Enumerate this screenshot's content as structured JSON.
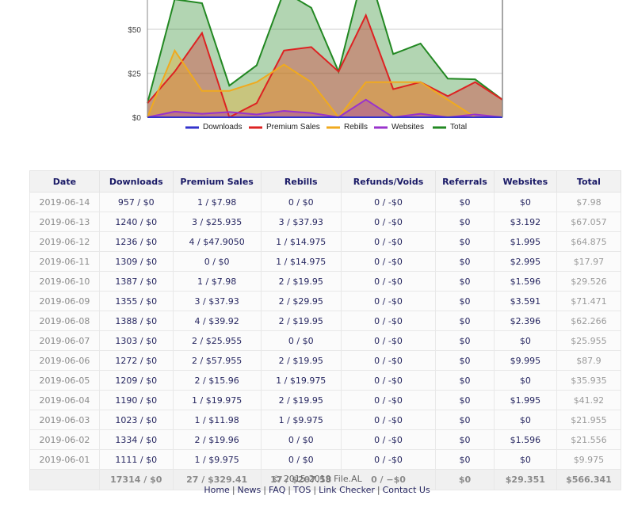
{
  "chart_data": {
    "type": "area",
    "title": "",
    "xlabel": "",
    "ylabel": "",
    "x": [
      "2019-06-14",
      "2019-06-13",
      "2019-06-12",
      "2019-06-11",
      "2019-06-10",
      "2019-06-09",
      "2019-06-08",
      "2019-06-07",
      "2019-06-06",
      "2019-06-05",
      "2019-06-04",
      "2019-06-03",
      "2019-06-02",
      "2019-06-01"
    ],
    "yticks": [
      0,
      25,
      50
    ],
    "ytick_labels": [
      "$0",
      "$25",
      "$50"
    ],
    "ylim": [
      0,
      75
    ],
    "grid": true,
    "legend_position": "bottom",
    "series": [
      {
        "name": "Downloads",
        "color": "#3333cc",
        "values": [
          0,
          0,
          0,
          0,
          0,
          0,
          0,
          0,
          0,
          0,
          0,
          0,
          0,
          0
        ]
      },
      {
        "name": "Premium Sales",
        "color": "#dd2222",
        "values": [
          7.98,
          25.935,
          47.905,
          0,
          7.98,
          37.93,
          39.92,
          25.955,
          57.955,
          15.96,
          19.975,
          11.98,
          19.96,
          9.975
        ]
      },
      {
        "name": "Rebills",
        "color": "#f0aa1e",
        "values": [
          0,
          37.93,
          14.975,
          14.975,
          19.95,
          29.95,
          19.95,
          0,
          19.95,
          19.975,
          19.95,
          9.975,
          0,
          0
        ]
      },
      {
        "name": "Websites",
        "color": "#9933cc",
        "values": [
          0,
          3.192,
          1.995,
          2.995,
          1.596,
          3.591,
          2.396,
          0,
          9.995,
          0,
          1.995,
          0,
          1.596,
          0
        ]
      },
      {
        "name": "Total",
        "color": "#228822",
        "values": [
          7.98,
          67.057,
          64.875,
          17.97,
          29.526,
          71.471,
          62.266,
          25.955,
          87.9,
          35.935,
          41.92,
          21.955,
          21.556,
          9.975
        ]
      }
    ]
  },
  "table": {
    "headers": [
      "Date",
      "Downloads",
      "Premium Sales",
      "Rebills",
      "Refunds/Voids",
      "Referrals",
      "Websites",
      "Total"
    ],
    "rows": [
      [
        "2019-06-14",
        "957 / $0",
        "1 / $7.98",
        "0 / $0",
        "0 / -$0",
        "$0",
        "$0",
        "$7.98"
      ],
      [
        "2019-06-13",
        "1240 / $0",
        "3 / $25.935",
        "3 / $37.93",
        "0 / -$0",
        "$0",
        "$3.192",
        "$67.057"
      ],
      [
        "2019-06-12",
        "1236 / $0",
        "4 / $47.9050",
        "1 / $14.975",
        "0 / -$0",
        "$0",
        "$1.995",
        "$64.875"
      ],
      [
        "2019-06-11",
        "1309 / $0",
        "0 / $0",
        "1 / $14.975",
        "0 / -$0",
        "$0",
        "$2.995",
        "$17.97"
      ],
      [
        "2019-06-10",
        "1387 / $0",
        "1 / $7.98",
        "2 / $19.95",
        "0 / -$0",
        "$0",
        "$1.596",
        "$29.526"
      ],
      [
        "2019-06-09",
        "1355 / $0",
        "3 / $37.93",
        "2 / $29.95",
        "0 / -$0",
        "$0",
        "$3.591",
        "$71.471"
      ],
      [
        "2019-06-08",
        "1388 / $0",
        "4 / $39.92",
        "2 / $19.95",
        "0 / -$0",
        "$0",
        "$2.396",
        "$62.266"
      ],
      [
        "2019-06-07",
        "1303 / $0",
        "2 / $25.955",
        "0 / $0",
        "0 / -$0",
        "$0",
        "$0",
        "$25.955"
      ],
      [
        "2019-06-06",
        "1272 / $0",
        "2 / $57.955",
        "2 / $19.95",
        "0 / -$0",
        "$0",
        "$9.995",
        "$87.9"
      ],
      [
        "2019-06-05",
        "1209 / $0",
        "2 / $15.96",
        "1 / $19.975",
        "0 / -$0",
        "$0",
        "$0",
        "$35.935"
      ],
      [
        "2019-06-04",
        "1190 / $0",
        "1 / $19.975",
        "2 / $19.95",
        "0 / -$0",
        "$0",
        "$1.995",
        "$41.92"
      ],
      [
        "2019-06-03",
        "1023 / $0",
        "1 / $11.98",
        "1 / $9.975",
        "0 / -$0",
        "$0",
        "$0",
        "$21.955"
      ],
      [
        "2019-06-02",
        "1334 / $0",
        "2 / $19.96",
        "0 / $0",
        "0 / -$0",
        "$0",
        "$1.596",
        "$21.556"
      ],
      [
        "2019-06-01",
        "1111 / $0",
        "1 / $9.975",
        "0 / $0",
        "0 / -$0",
        "$0",
        "$0",
        "$9.975"
      ]
    ],
    "totals": [
      "",
      "17314 / $0",
      "27 / $329.41",
      "17 / $207.58",
      "0 / −$0",
      "$0",
      "$29.351",
      "$566.341"
    ]
  },
  "footer": {
    "copyright": "© 2015-2019 File.AL",
    "links": [
      "Home",
      "News",
      "FAQ",
      "TOS",
      "Link Checker",
      "Contact Us"
    ],
    "separator": "|"
  }
}
